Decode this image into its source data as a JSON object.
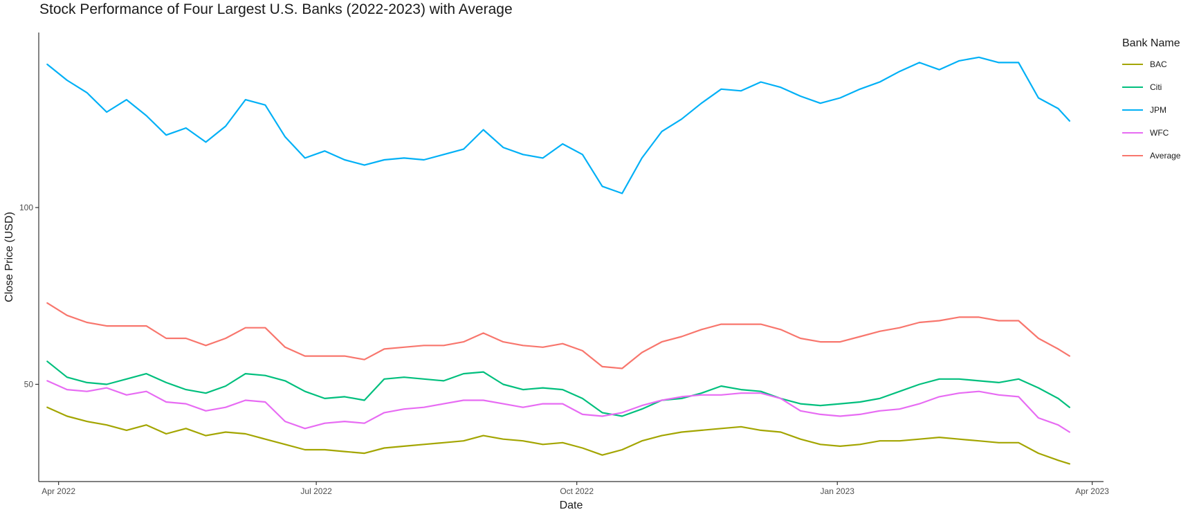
{
  "chart_data": {
    "type": "line",
    "title": "Stock Performance of Four Largest U.S. Banks (2022-2023) with Average",
    "xlabel": "Date",
    "ylabel": "Close Price (USD)",
    "xlim": [
      "2022-03-25",
      "2023-04-05"
    ],
    "ylim": [
      22.5,
      149.5
    ],
    "x_ticks": [
      {
        "date": "2022-04-01",
        "label": "Apr 2022"
      },
      {
        "date": "2022-07-01",
        "label": "Jul 2022"
      },
      {
        "date": "2022-10-01",
        "label": "Oct 2022"
      },
      {
        "date": "2023-01-01",
        "label": "Jan 2023"
      },
      {
        "date": "2023-04-01",
        "label": "Apr 2023"
      }
    ],
    "y_ticks": [
      {
        "value": 50,
        "label": "50"
      },
      {
        "value": 100,
        "label": "100"
      }
    ],
    "grid": false,
    "legend": {
      "title": "Bank Name",
      "position": "right"
    },
    "dates": [
      "2022-03-28",
      "2022-04-04",
      "2022-04-11",
      "2022-04-18",
      "2022-04-25",
      "2022-05-02",
      "2022-05-09",
      "2022-05-16",
      "2022-05-23",
      "2022-05-30",
      "2022-06-06",
      "2022-06-13",
      "2022-06-20",
      "2022-06-27",
      "2022-07-04",
      "2022-07-11",
      "2022-07-18",
      "2022-07-25",
      "2022-08-01",
      "2022-08-08",
      "2022-08-15",
      "2022-08-22",
      "2022-08-29",
      "2022-09-05",
      "2022-09-12",
      "2022-09-19",
      "2022-09-26",
      "2022-10-03",
      "2022-10-10",
      "2022-10-17",
      "2022-10-24",
      "2022-10-31",
      "2022-11-07",
      "2022-11-14",
      "2022-11-21",
      "2022-11-28",
      "2022-12-05",
      "2022-12-12",
      "2022-12-19",
      "2022-12-26",
      "2023-01-02",
      "2023-01-09",
      "2023-01-16",
      "2023-01-23",
      "2023-01-30",
      "2023-02-06",
      "2023-02-13",
      "2023-02-20",
      "2023-02-27",
      "2023-03-06",
      "2023-03-13",
      "2023-03-20",
      "2023-03-24"
    ],
    "series": [
      {
        "name": "BAC",
        "color": "#a3a500",
        "values": [
          43.5,
          41.0,
          39.5,
          38.5,
          37.0,
          38.5,
          36.0,
          37.5,
          35.5,
          36.5,
          36.0,
          34.5,
          33.0,
          31.5,
          31.5,
          31.0,
          30.5,
          32.0,
          32.5,
          33.0,
          33.5,
          34.0,
          35.5,
          34.5,
          34.0,
          33.0,
          33.5,
          32.0,
          30.0,
          31.5,
          34.0,
          35.5,
          36.5,
          37.0,
          37.5,
          38.0,
          37.0,
          36.5,
          34.5,
          33.0,
          32.5,
          33.0,
          34.0,
          34.0,
          34.5,
          35.0,
          34.5,
          34.0,
          33.5,
          33.5,
          30.5,
          28.5,
          27.5
        ]
      },
      {
        "name": "Citi",
        "color": "#00bf7d",
        "values": [
          56.5,
          52.0,
          50.5,
          50.0,
          51.5,
          53.0,
          50.5,
          48.5,
          47.5,
          49.5,
          53.0,
          52.5,
          51.0,
          48.0,
          46.0,
          46.5,
          45.5,
          51.5,
          52.0,
          51.5,
          51.0,
          53.0,
          53.5,
          50.0,
          48.5,
          49.0,
          48.5,
          46.0,
          42.0,
          41.0,
          43.0,
          45.5,
          46.0,
          47.5,
          49.5,
          48.5,
          48.0,
          46.0,
          44.5,
          44.0,
          44.5,
          45.0,
          46.0,
          48.0,
          50.0,
          51.5,
          51.5,
          51.0,
          50.5,
          51.5,
          49.0,
          46.0,
          43.5
        ]
      },
      {
        "name": "JPM",
        "color": "#00b0f6",
        "values": [
          140.5,
          136.0,
          132.5,
          127.0,
          130.5,
          126.0,
          120.5,
          122.5,
          118.5,
          123.0,
          130.5,
          129.0,
          120.0,
          114.0,
          116.0,
          113.5,
          112.0,
          113.5,
          114.0,
          113.5,
          115.0,
          116.5,
          122.0,
          117.0,
          115.0,
          114.0,
          118.0,
          115.0,
          106.0,
          104.0,
          114.0,
          121.5,
          125.0,
          129.5,
          133.5,
          133.0,
          135.5,
          134.0,
          131.5,
          129.5,
          131.0,
          133.5,
          135.5,
          138.5,
          141.0,
          139.0,
          141.5,
          142.5,
          141.0,
          141.0,
          131.0,
          128.0,
          124.5
        ]
      },
      {
        "name": "WFC",
        "color": "#e76bf3",
        "values": [
          51.0,
          48.5,
          48.0,
          49.0,
          47.0,
          48.0,
          45.0,
          44.5,
          42.5,
          43.5,
          45.5,
          45.0,
          39.5,
          37.5,
          39.0,
          39.5,
          39.0,
          42.0,
          43.0,
          43.5,
          44.5,
          45.5,
          45.5,
          44.5,
          43.5,
          44.5,
          44.5,
          41.5,
          41.0,
          42.0,
          44.0,
          45.5,
          46.5,
          47.0,
          47.0,
          47.5,
          47.5,
          46.0,
          42.5,
          41.5,
          41.0,
          41.5,
          42.5,
          43.0,
          44.5,
          46.5,
          47.5,
          48.0,
          47.0,
          46.5,
          40.5,
          38.5,
          36.5
        ]
      },
      {
        "name": "Average",
        "color": "#f8766d",
        "values": [
          73.0,
          69.5,
          67.5,
          66.5,
          66.5,
          66.5,
          63.0,
          63.0,
          61.0,
          63.0,
          66.0,
          66.0,
          60.5,
          58.0,
          58.0,
          58.0,
          57.0,
          60.0,
          60.5,
          61.0,
          61.0,
          62.0,
          64.5,
          62.0,
          61.0,
          60.5,
          61.5,
          59.5,
          55.0,
          54.5,
          59.0,
          62.0,
          63.5,
          65.5,
          67.0,
          67.0,
          67.0,
          65.5,
          63.0,
          62.0,
          62.0,
          63.5,
          65.0,
          66.0,
          67.5,
          68.0,
          69.0,
          69.0,
          68.0,
          68.0,
          63.0,
          60.0,
          58.0
        ]
      }
    ]
  }
}
